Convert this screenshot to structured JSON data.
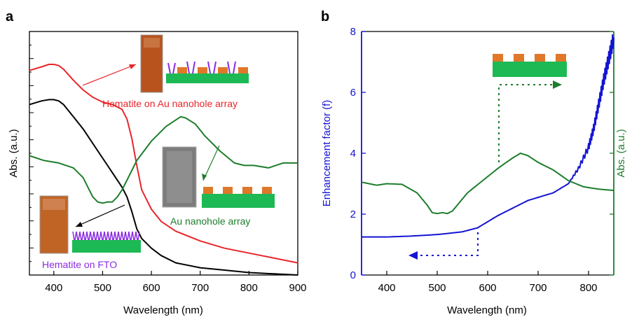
{
  "chart_data": [
    {
      "panel": "a",
      "type": "line",
      "xlabel": "Wavelength (nm)",
      "ylabel": "Abs. (a.u.)",
      "xlim": [
        350,
        900
      ],
      "xticks": [
        400,
        500,
        600,
        700,
        800,
        900
      ],
      "y_tick_labels_shown": false,
      "grid": false,
      "series": [
        {
          "name": "Hematite on Au nanohole array",
          "color": "#e8262b",
          "x": [
            350,
            375,
            390,
            400,
            410,
            420,
            440,
            460,
            480,
            500,
            520,
            540,
            550,
            560,
            570,
            580,
            600,
            620,
            650,
            700,
            750,
            800,
            850,
            900
          ],
          "y": [
            0.84,
            0.855,
            0.865,
            0.865,
            0.86,
            0.845,
            0.8,
            0.76,
            0.73,
            0.71,
            0.7,
            0.68,
            0.64,
            0.56,
            0.45,
            0.35,
            0.27,
            0.22,
            0.18,
            0.14,
            0.11,
            0.09,
            0.07,
            0.05
          ]
        },
        {
          "name": "Hematite on FTO",
          "color": "#000000",
          "x": [
            350,
            375,
            390,
            400,
            410,
            420,
            440,
            460,
            480,
            500,
            520,
            540,
            550,
            560,
            570,
            580,
            600,
            620,
            650,
            700,
            750,
            800,
            850,
            900
          ],
          "y": [
            0.7,
            0.715,
            0.72,
            0.72,
            0.715,
            0.7,
            0.65,
            0.6,
            0.54,
            0.48,
            0.42,
            0.36,
            0.32,
            0.26,
            0.19,
            0.15,
            0.11,
            0.08,
            0.05,
            0.03,
            0.02,
            0.01,
            0.005,
            0.0
          ]
        },
        {
          "name": "Au nanohole array",
          "color": "#1e7d2c",
          "x": [
            350,
            380,
            410,
            440,
            460,
            480,
            490,
            500,
            510,
            520,
            530,
            540,
            550,
            570,
            600,
            630,
            660,
            670,
            690,
            710,
            740,
            770,
            790,
            810,
            840,
            870,
            900
          ],
          "y": [
            0.49,
            0.47,
            0.46,
            0.44,
            0.4,
            0.32,
            0.3,
            0.295,
            0.3,
            0.3,
            0.32,
            0.35,
            0.39,
            0.47,
            0.55,
            0.61,
            0.65,
            0.645,
            0.62,
            0.57,
            0.51,
            0.46,
            0.45,
            0.45,
            0.44,
            0.46,
            0.46
          ]
        }
      ],
      "annotations": [
        {
          "text": "Hematite on Au nanohole array",
          "color": "#e8262b"
        },
        {
          "text": "Au nanohole array",
          "color": "#1e7d2c"
        },
        {
          "text": "Hematite on FTO",
          "color": "#8a2be2"
        }
      ]
    },
    {
      "panel": "b",
      "type": "line",
      "xlabel": "Wavelength (nm)",
      "ylabel": "Enhancement factor (f)",
      "ylabel_right": "Abs. (a.u.)",
      "xlim": [
        350,
        850
      ],
      "ylim": [
        0,
        8
      ],
      "xticks": [
        400,
        500,
        600,
        700,
        800
      ],
      "yticks": [
        0,
        2,
        4,
        6,
        8
      ],
      "grid": false,
      "series": [
        {
          "name": "Enhancement factor",
          "axis": "left",
          "color": "#1414d2",
          "x": [
            350,
            400,
            450,
            500,
            550,
            580,
            600,
            620,
            650,
            680,
            700,
            730,
            760,
            780,
            800,
            810,
            820,
            830,
            840,
            850
          ],
          "y": [
            1.25,
            1.25,
            1.28,
            1.33,
            1.42,
            1.55,
            1.75,
            1.95,
            2.2,
            2.45,
            2.55,
            2.7,
            3.0,
            3.5,
            4.2,
            4.8,
            5.6,
            6.4,
            7.1,
            7.8
          ]
        },
        {
          "name": "Au nanohole array abs.",
          "axis": "right",
          "color": "#1e7d2c",
          "x": [
            350,
            380,
            400,
            430,
            460,
            480,
            490,
            500,
            510,
            520,
            530,
            545,
            560,
            590,
            620,
            650,
            665,
            680,
            700,
            730,
            760,
            790,
            820,
            850
          ],
          "y": [
            3.05,
            2.95,
            3.0,
            2.98,
            2.7,
            2.3,
            2.05,
            2.02,
            2.05,
            2.02,
            2.1,
            2.4,
            2.7,
            3.1,
            3.5,
            3.85,
            4.0,
            3.92,
            3.7,
            3.45,
            3.1,
            2.9,
            2.82,
            2.78
          ]
        }
      ]
    }
  ],
  "panel_labels": {
    "a": "a",
    "b": "b"
  },
  "colors": {
    "red": "#e8262b",
    "black": "#000000",
    "green": "#1e7d2c",
    "blue": "#1414d2",
    "purple": "#8a2be2",
    "orange": "#e0782a",
    "pad_green": "#1db954"
  }
}
